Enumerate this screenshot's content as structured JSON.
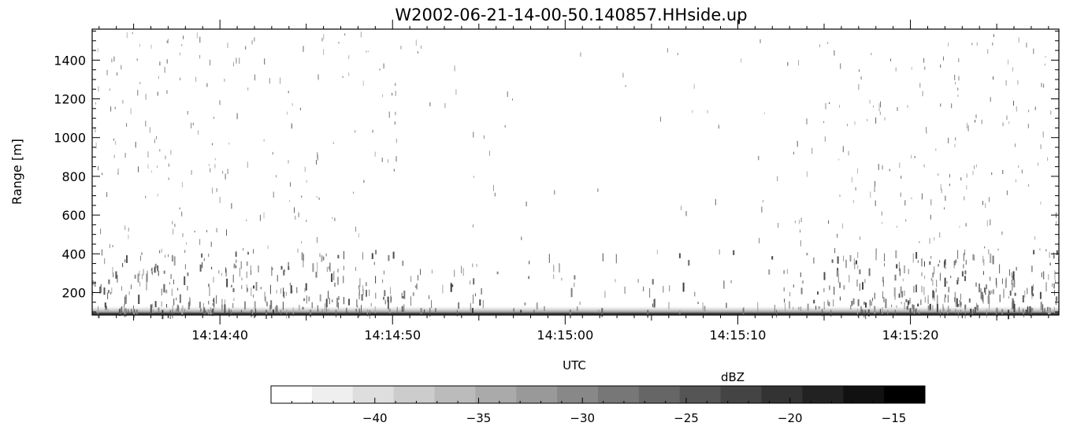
{
  "chart_data": {
    "type": "heatmap",
    "title": "W2002-06-21-14-00-50.140857.HHside.up",
    "xlabel": "UTC",
    "ylabel": "Range [m]",
    "x_ticks": [
      "14:14:40",
      "14:14:50",
      "14:15:00",
      "14:15:10",
      "14:15:20"
    ],
    "x_tick_seconds": [
      40,
      50,
      60,
      70,
      80
    ],
    "xlim_seconds": [
      32.6,
      88.6
    ],
    "y_ticks": [
      200,
      400,
      600,
      800,
      1000,
      1200,
      1400
    ],
    "ylim": [
      84,
      1560
    ],
    "colorbar": {
      "label": "dBZ",
      "range": [
        -45,
        -13.5
      ],
      "ticks": [
        -40,
        -35,
        -30,
        -25,
        -20,
        -15
      ],
      "levels": [
        "#ffffff",
        "#efefef",
        "#dedede",
        "#cccccc",
        "#bbbbbb",
        "#aaaaaa",
        "#999999",
        "#888888",
        "#777777",
        "#666666",
        "#555555",
        "#444444",
        "#333333",
        "#222222",
        "#111111",
        "#000000"
      ]
    },
    "data_description": "Sparse weak echoes (about -35 to -25 dBZ) scattered through the column, denser and darker below 400 m; strong near-ground clutter (about -20 to -15 dBZ) below about 120 m; more activity before 14:14:55 and after 14:15:13."
  }
}
